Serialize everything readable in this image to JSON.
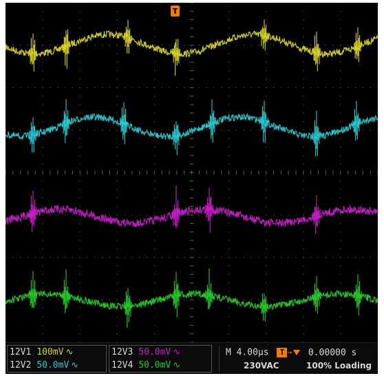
{
  "colors": {
    "ch1": "#d9d22a",
    "ch2": "#2cc8d0",
    "ch3": "#c71ec9",
    "ch4": "#28c82a",
    "grid": "#5a5a5a",
    "trigger": "#f07c00",
    "text": "#d8d8d8"
  },
  "trigger_marker": {
    "label": "T",
    "icon": "trigger-position-icon"
  },
  "channels": [
    {
      "name": "12V1",
      "scale": "100mV",
      "coupling": "∿"
    },
    {
      "name": "12V2",
      "scale": "50.0mV",
      "coupling": "∿"
    },
    {
      "name": "12V3",
      "scale": "50.0mV",
      "coupling": "∿"
    },
    {
      "name": "12V4",
      "scale": "50.0mV",
      "coupling": "∿"
    }
  ],
  "timebase": {
    "label": "M",
    "value": "4.00µs"
  },
  "trigger_status": {
    "icon": "trigger-icon",
    "delay": "0.00000 s"
  },
  "conditions": {
    "input": "230VAC",
    "load": "100% Loading"
  }
}
